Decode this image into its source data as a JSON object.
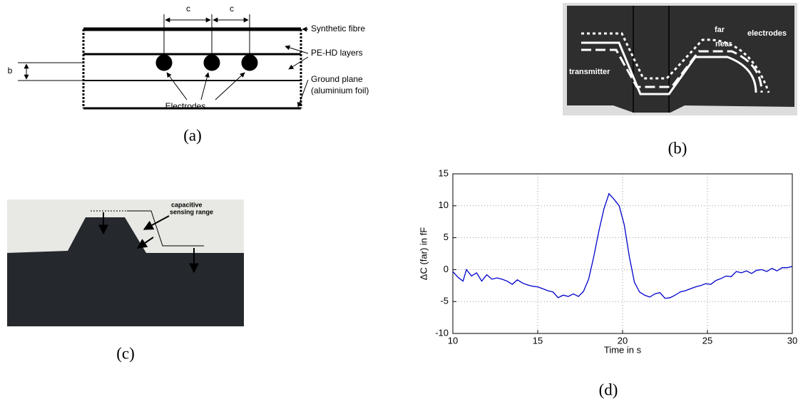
{
  "panels": {
    "a": {
      "caption": "(a)",
      "dim_c1": "c",
      "dim_c2": "c",
      "dim_b": "b",
      "labels": [
        "Synthetic fibre",
        "PE-HD layers",
        "Ground plane",
        "(aluminium foil)",
        "Electrodes"
      ]
    },
    "b": {
      "caption": "(b)",
      "labels": [
        "transmitter",
        "far",
        "near",
        "electrodes"
      ]
    },
    "c": {
      "caption": "(c)",
      "labels": [
        "capacitive",
        "sensing range"
      ]
    },
    "d": {
      "caption": "(d)",
      "chart_data": {
        "type": "line",
        "x_label": "Time in s",
        "y_label": "ΔC (far) in fF",
        "xlim": [
          10,
          30
        ],
        "xticks": [
          10,
          15,
          20,
          25,
          30
        ],
        "ylim": [
          -10,
          15
        ],
        "yticks": [
          -10,
          -5,
          0,
          5,
          10,
          15
        ],
        "grid": true,
        "x": [
          10.0,
          10.3,
          10.6,
          10.8,
          11.1,
          11.4,
          11.7,
          12.0,
          12.3,
          12.6,
          12.9,
          13.2,
          13.5,
          13.8,
          14.1,
          14.4,
          14.7,
          15.0,
          15.3,
          15.6,
          15.9,
          16.2,
          16.5,
          16.8,
          17.1,
          17.4,
          17.7,
          18.0,
          18.3,
          18.6,
          18.9,
          19.2,
          19.5,
          19.8,
          20.1,
          20.4,
          20.7,
          21.0,
          21.3,
          21.6,
          21.9,
          22.2,
          22.5,
          22.8,
          23.1,
          23.4,
          23.7,
          24.0,
          24.3,
          24.6,
          24.9,
          25.2,
          25.5,
          25.8,
          26.1,
          26.4,
          26.7,
          27.0,
          27.3,
          27.6,
          27.9,
          28.2,
          28.5,
          28.8,
          29.1,
          29.4,
          29.7,
          30.0
        ],
        "series": [
          {
            "color": "#0000cc",
            "values": [
              -0.3,
              -1.2,
              -1.8,
              0,
              -1.0,
              -0.5,
              -1.8,
              -0.8,
              -1.5,
              -1.3,
              -1.5,
              -1.8,
              -2.3,
              -1.6,
              -2.1,
              -2.4,
              -2.6,
              -2.7,
              -3.0,
              -3.3,
              -3.5,
              -4.4,
              -4.0,
              -4.2,
              -3.8,
              -4.2,
              -3.4,
              -1.5,
              2.0,
              6.0,
              9.5,
              11.9,
              11.0,
              10.0,
              7.0,
              2.0,
              -2.0,
              -3.5,
              -4.0,
              -4.3,
              -3.8,
              -3.6,
              -4.5,
              -4.4,
              -4.0,
              -3.5,
              -3.3,
              -3.0,
              -2.7,
              -2.5,
              -2.2,
              -2.3,
              -1.7,
              -1.4,
              -1.0,
              -1.1,
              -0.3,
              -0.5,
              -0.2,
              -0.6,
              -0.1,
              0.0,
              -0.3,
              0.2,
              -0.2,
              0.3,
              0.3,
              0.5
            ]
          }
        ]
      }
    }
  }
}
